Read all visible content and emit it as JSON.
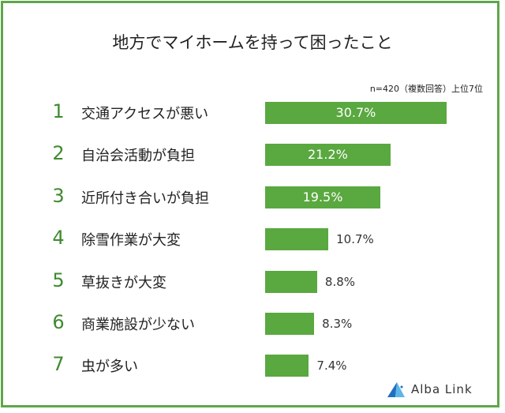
{
  "chart_data": {
    "type": "bar",
    "orientation": "horizontal",
    "title": "地方でマイホームを持って困ったこと",
    "subtitle": "n=420（複数回答）上位7位",
    "categories": [
      "交通アクセスが悪い",
      "自治会活動が負担",
      "近所付き合いが負担",
      "除雪作業が大変",
      "草抜きが大変",
      "商業施設が少ない",
      "虫が多い"
    ],
    "ranks": [
      "1",
      "2",
      "3",
      "4",
      "5",
      "6",
      "7"
    ],
    "values": [
      30.7,
      21.2,
      19.5,
      10.7,
      8.8,
      8.3,
      7.4
    ],
    "value_labels": [
      "30.7%",
      "21.2%",
      "19.5%",
      "10.7%",
      "8.8%",
      "8.3%",
      "7.4%"
    ],
    "unit": "%",
    "bar_color": "#5aa840",
    "grid": false
  },
  "logo": {
    "text": "Alba Link"
  },
  "colors": {
    "border": "#5fa64a",
    "rank": "#3f8a2e"
  }
}
